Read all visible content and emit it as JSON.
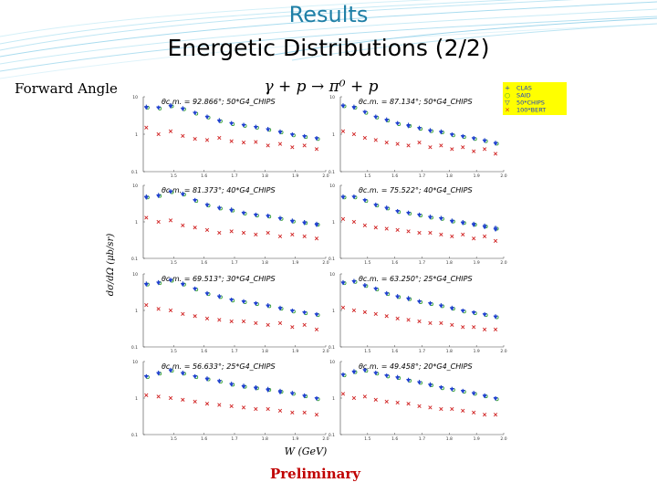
{
  "slide": {
    "title": "Results",
    "subtitle": "Energetic Distributions (2/2)",
    "side_label": "Forward Angle",
    "preliminary": "Preliminary"
  },
  "colors": {
    "title": "#1f7fa6",
    "preliminary": "#c00000"
  },
  "chart_data": {
    "type": "scatter",
    "title": "γ + p → π⁰ + p",
    "xlabel": "W (GeV)",
    "ylabel": "dσ/dΩ (μb/sr)",
    "xlim": [
      1.4,
      2.0
    ],
    "yscale": "log",
    "ylim": [
      0.1,
      10
    ],
    "x_ticks": [
      "1.5",
      "1.6",
      "1.7",
      "1.8",
      "1.9",
      "2.0"
    ],
    "y_ticks": [
      "10",
      "1",
      "0.1"
    ],
    "legend": [
      {
        "name": "CLAS",
        "marker": "+",
        "color": "#1a3cc8"
      },
      {
        "name": "SAID",
        "marker": "○",
        "color": "#2a9a2a"
      },
      {
        "name": "50*CHIPS",
        "marker": "▽",
        "color": "#2040d0"
      },
      {
        "name": "100*BERT",
        "marker": "×",
        "color": "#d02020"
      }
    ],
    "panels": [
      {
        "label": "θc.m. = 92.866°; 50*G4_CHIPS",
        "x": [
          1.41,
          1.45,
          1.49,
          1.53,
          1.57,
          1.61,
          1.65,
          1.69,
          1.73,
          1.77,
          1.81,
          1.85,
          1.89,
          1.93,
          1.97
        ],
        "data": [
          5.5,
          5.2,
          6.0,
          5.0,
          3.8,
          3.0,
          2.4,
          2.0,
          1.8,
          1.6,
          1.4,
          1.2,
          1.0,
          0.9,
          0.8
        ],
        "chips": [
          5.0,
          5.0,
          5.4,
          4.6,
          3.6,
          2.8,
          2.2,
          1.9,
          1.7,
          1.5,
          1.3,
          1.1,
          0.95,
          0.85,
          0.75
        ],
        "bert": [
          1.5,
          1.0,
          1.2,
          0.9,
          0.75,
          0.7,
          0.8,
          0.65,
          0.6,
          0.62,
          0.5,
          0.55,
          0.45,
          0.5,
          0.4
        ]
      },
      {
        "label": "θc.m. = 87.134°; 50*G4_CHIPS",
        "x": [
          1.41,
          1.45,
          1.49,
          1.53,
          1.57,
          1.61,
          1.65,
          1.69,
          1.73,
          1.77,
          1.81,
          1.85,
          1.89,
          1.93,
          1.97
        ],
        "data": [
          6.0,
          5.5,
          4.0,
          3.0,
          2.5,
          2.0,
          1.8,
          1.5,
          1.3,
          1.2,
          1.0,
          0.9,
          0.8,
          0.7,
          0.6
        ],
        "chips": [
          5.5,
          5.0,
          3.8,
          2.8,
          2.3,
          1.9,
          1.6,
          1.4,
          1.2,
          1.1,
          0.95,
          0.85,
          0.75,
          0.65,
          0.55
        ],
        "bert": [
          1.2,
          1.0,
          0.8,
          0.7,
          0.6,
          0.55,
          0.5,
          0.6,
          0.45,
          0.5,
          0.4,
          0.45,
          0.35,
          0.4,
          0.3
        ]
      },
      {
        "label": "θc.m. = 81.373°; 40*G4_CHIPS",
        "x": [
          1.41,
          1.45,
          1.49,
          1.53,
          1.57,
          1.61,
          1.65,
          1.69,
          1.73,
          1.77,
          1.81,
          1.85,
          1.89,
          1.93,
          1.97
        ],
        "data": [
          5.0,
          5.5,
          7.0,
          6.0,
          4.0,
          3.0,
          2.5,
          2.2,
          1.8,
          1.6,
          1.5,
          1.3,
          1.1,
          1.0,
          0.9
        ],
        "chips": [
          4.5,
          5.0,
          6.5,
          5.5,
          3.8,
          2.8,
          2.3,
          2.0,
          1.7,
          1.5,
          1.4,
          1.2,
          1.0,
          0.9,
          0.8
        ],
        "bert": [
          1.3,
          1.0,
          1.1,
          0.8,
          0.7,
          0.6,
          0.5,
          0.55,
          0.5,
          0.45,
          0.5,
          0.4,
          0.45,
          0.4,
          0.35
        ]
      },
      {
        "label": "θc.m. = 75.522°; 40*G4_CHIPS",
        "x": [
          1.41,
          1.45,
          1.49,
          1.53,
          1.57,
          1.61,
          1.65,
          1.69,
          1.73,
          1.77,
          1.81,
          1.85,
          1.89,
          1.93,
          1.97
        ],
        "data": [
          5.0,
          5.0,
          4.0,
          3.0,
          2.5,
          2.0,
          1.8,
          1.6,
          1.4,
          1.3,
          1.1,
          1.0,
          0.9,
          0.8,
          0.7
        ],
        "chips": [
          4.6,
          4.7,
          3.8,
          2.8,
          2.3,
          1.9,
          1.7,
          1.5,
          1.3,
          1.2,
          1.0,
          0.9,
          0.8,
          0.7,
          0.6
        ],
        "bert": [
          1.2,
          1.0,
          0.8,
          0.7,
          0.65,
          0.6,
          0.55,
          0.5,
          0.5,
          0.45,
          0.4,
          0.45,
          0.35,
          0.4,
          0.3
        ]
      },
      {
        "label": "θc.m. = 69.513°; 30*G4_CHIPS",
        "x": [
          1.41,
          1.45,
          1.49,
          1.53,
          1.57,
          1.61,
          1.65,
          1.69,
          1.73,
          1.77,
          1.81,
          1.85,
          1.89,
          1.93,
          1.97
        ],
        "data": [
          5.5,
          6.0,
          7.0,
          5.5,
          4.0,
          3.0,
          2.5,
          2.0,
          1.8,
          1.6,
          1.4,
          1.2,
          1.0,
          0.9,
          0.8
        ],
        "chips": [
          5.0,
          5.5,
          6.5,
          5.0,
          3.8,
          2.8,
          2.3,
          1.9,
          1.7,
          1.5,
          1.3,
          1.1,
          0.95,
          0.85,
          0.75
        ],
        "bert": [
          1.4,
          1.1,
          1.0,
          0.8,
          0.7,
          0.6,
          0.55,
          0.5,
          0.5,
          0.45,
          0.4,
          0.45,
          0.35,
          0.4,
          0.3
        ]
      },
      {
        "label": "θc.m. = 63.250°; 25*G4_CHIPS",
        "x": [
          1.41,
          1.45,
          1.49,
          1.53,
          1.57,
          1.61,
          1.65,
          1.69,
          1.73,
          1.77,
          1.81,
          1.85,
          1.89,
          1.93,
          1.97
        ],
        "data": [
          6.0,
          6.5,
          5.0,
          4.0,
          3.0,
          2.5,
          2.2,
          1.8,
          1.6,
          1.4,
          1.2,
          1.0,
          0.9,
          0.8,
          0.7
        ],
        "chips": [
          5.5,
          6.0,
          4.6,
          3.8,
          2.8,
          2.3,
          2.0,
          1.7,
          1.5,
          1.3,
          1.1,
          0.95,
          0.85,
          0.75,
          0.65
        ],
        "bert": [
          1.2,
          1.0,
          0.9,
          0.8,
          0.7,
          0.6,
          0.55,
          0.5,
          0.45,
          0.45,
          0.4,
          0.35,
          0.35,
          0.3,
          0.3
        ]
      },
      {
        "label": "θc.m. = 56.633°; 25*G4_CHIPS",
        "x": [
          1.41,
          1.45,
          1.49,
          1.53,
          1.57,
          1.61,
          1.65,
          1.69,
          1.73,
          1.77,
          1.81,
          1.85,
          1.89,
          1.93,
          1.97
        ],
        "data": [
          4.0,
          5.0,
          6.0,
          5.0,
          4.0,
          3.5,
          3.0,
          2.5,
          2.2,
          2.0,
          1.8,
          1.6,
          1.4,
          1.2,
          1.0
        ],
        "chips": [
          3.8,
          4.6,
          5.5,
          4.6,
          3.8,
          3.2,
          2.8,
          2.3,
          2.0,
          1.8,
          1.6,
          1.4,
          1.3,
          1.1,
          0.95
        ],
        "bert": [
          1.2,
          1.1,
          1.0,
          0.9,
          0.8,
          0.7,
          0.65,
          0.6,
          0.55,
          0.5,
          0.5,
          0.45,
          0.4,
          0.4,
          0.35
        ]
      },
      {
        "label": "θc.m. = 49.458°; 20*G4_CHIPS",
        "x": [
          1.41,
          1.45,
          1.49,
          1.53,
          1.57,
          1.61,
          1.65,
          1.69,
          1.73,
          1.77,
          1.81,
          1.85,
          1.89,
          1.93,
          1.97
        ],
        "data": [
          4.5,
          5.5,
          6.0,
          5.0,
          4.2,
          3.8,
          3.2,
          2.8,
          2.4,
          2.0,
          1.8,
          1.6,
          1.4,
          1.2,
          1.0
        ],
        "chips": [
          4.2,
          5.0,
          5.6,
          4.7,
          4.0,
          3.5,
          3.0,
          2.6,
          2.2,
          1.9,
          1.7,
          1.5,
          1.3,
          1.1,
          0.95
        ],
        "bert": [
          1.3,
          1.0,
          1.1,
          0.9,
          0.8,
          0.75,
          0.7,
          0.6,
          0.55,
          0.5,
          0.5,
          0.45,
          0.4,
          0.35,
          0.35
        ]
      }
    ]
  }
}
